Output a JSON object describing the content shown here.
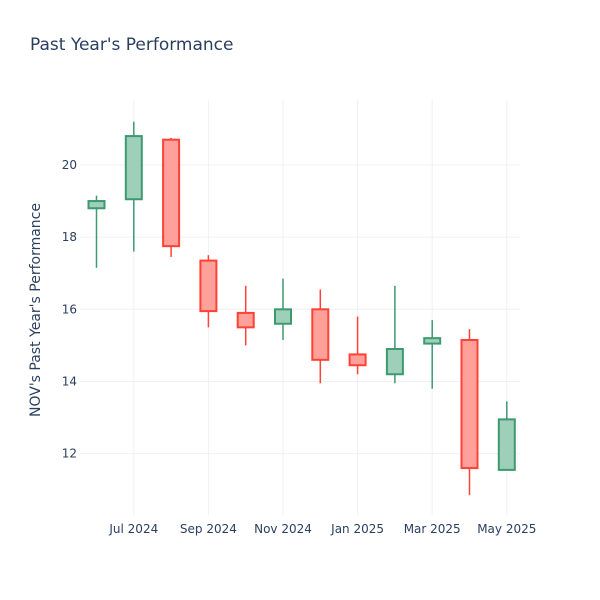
{
  "chart_data": {
    "type": "candlestick",
    "title": "Past Year's Performance",
    "xlabel": "",
    "ylabel": "NOV's Past Year's Performance",
    "ylim": [
      10.3,
      21.8
    ],
    "y_ticks": [
      12,
      14,
      16,
      18,
      20
    ],
    "x_tick_labels": [
      "Jul 2024",
      "Sep 2024",
      "Nov 2024",
      "Jan 2025",
      "Mar 2025",
      "May 2025"
    ],
    "grid": true,
    "colors": {
      "increasing": "#3d9970",
      "decreasing": "#ff4136",
      "increasing_fill": "#9ecfb8",
      "decreasing_fill": "#ffa09a"
    },
    "candles": [
      {
        "date": "2024-06",
        "open": 18.8,
        "high": 19.15,
        "low": 17.15,
        "close": 19.0
      },
      {
        "date": "2024-07",
        "open": 19.05,
        "high": 21.2,
        "low": 17.6,
        "close": 20.8
      },
      {
        "date": "2024-08",
        "open": 20.7,
        "high": 20.75,
        "low": 17.45,
        "close": 17.75
      },
      {
        "date": "2024-09",
        "open": 17.35,
        "high": 17.5,
        "low": 15.5,
        "close": 15.95
      },
      {
        "date": "2024-10",
        "open": 15.9,
        "high": 16.65,
        "low": 15.0,
        "close": 15.5
      },
      {
        "date": "2024-11",
        "open": 15.6,
        "high": 16.85,
        "low": 15.15,
        "close": 16.0
      },
      {
        "date": "2024-12",
        "open": 16.0,
        "high": 16.55,
        "low": 13.95,
        "close": 14.6
      },
      {
        "date": "2025-01",
        "open": 14.75,
        "high": 15.8,
        "low": 14.2,
        "close": 14.45
      },
      {
        "date": "2025-02",
        "open": 14.2,
        "high": 16.65,
        "low": 13.95,
        "close": 14.9
      },
      {
        "date": "2025-03",
        "open": 15.05,
        "high": 15.7,
        "low": 13.8,
        "close": 15.2
      },
      {
        "date": "2025-04",
        "open": 15.15,
        "high": 15.45,
        "low": 10.85,
        "close": 11.6
      },
      {
        "date": "2025-05",
        "open": 11.55,
        "high": 13.45,
        "low": 11.55,
        "close": 12.95
      }
    ]
  }
}
